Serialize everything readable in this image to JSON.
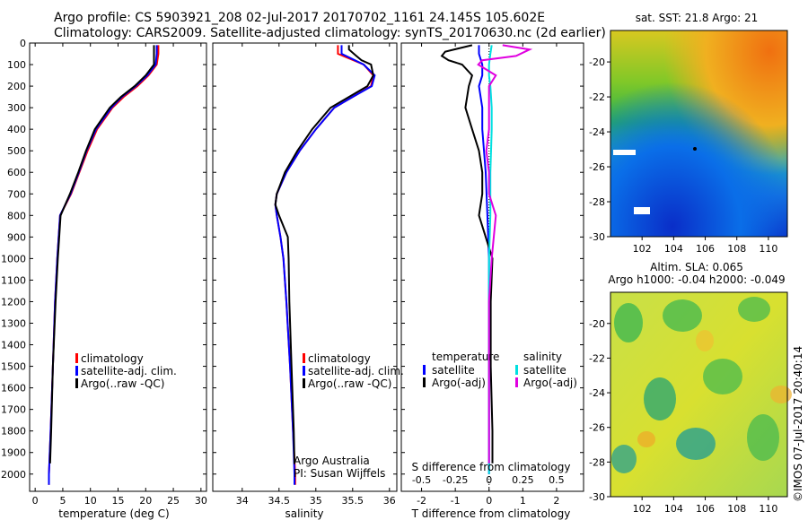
{
  "header": {
    "line1": "Argo profile: CS 5903921_208 02-Jul-2017 20170702_1161 24.145S 105.602E",
    "line2": "Climatology: CARS2009. Satellite-adjusted climatology: synTS_20170630.nc (2d earlier)"
  },
  "footer_vertical": "©IMOS 07-Jul-2017 20:40:14",
  "colors": {
    "climatology": "#ff0000",
    "satellite": "#0000ff",
    "argo": "#000000",
    "salinity_satellite": "#00e0e0",
    "salinity_argo": "#e000e0"
  },
  "chart_data": [
    {
      "type": "line",
      "panel": "temperature",
      "xlabel": "temperature (deg C)",
      "ylabel": "",
      "xlim": [
        -1,
        31
      ],
      "ylim": [
        2080,
        0
      ],
      "xticks": [
        "0",
        "5",
        "10",
        "15",
        "20",
        "25",
        "30"
      ],
      "yticks": [
        "0",
        "100",
        "200",
        "300",
        "400",
        "500",
        "600",
        "700",
        "800",
        "900",
        "1000",
        "1100",
        "1200",
        "1300",
        "1400",
        "1500",
        "1600",
        "1700",
        "1800",
        "1900",
        "2000"
      ],
      "legend": [
        "climatology",
        "satellite-adj. clim.",
        "Argo(..raw -QC)"
      ],
      "legend_position": "bottom-center",
      "series": [
        {
          "name": "climatology",
          "depth": [
            10,
            50,
            100,
            150,
            200,
            250,
            300,
            400,
            500,
            600,
            700,
            800,
            1000,
            1200,
            1500,
            1800,
            2000,
            2050
          ],
          "values": [
            22.3,
            22.3,
            22.0,
            20.5,
            18.5,
            16.0,
            14.0,
            11.2,
            9.5,
            8.0,
            6.5,
            4.5,
            4.0,
            3.6,
            3.2,
            2.8,
            2.5,
            2.5
          ]
        },
        {
          "name": "satellite-adj. clim.",
          "depth": [
            10,
            50,
            100,
            150,
            200,
            250,
            300,
            400,
            500,
            600,
            700,
            800,
            1000,
            1200,
            1500,
            1800,
            2000,
            2050
          ],
          "values": [
            22.0,
            22.0,
            21.8,
            20.3,
            18.2,
            15.7,
            13.8,
            11.0,
            9.3,
            7.9,
            6.4,
            4.5,
            4.0,
            3.6,
            3.2,
            2.8,
            2.5,
            2.5
          ]
        },
        {
          "name": "Argo(..raw -QC)",
          "depth": [
            10,
            50,
            100,
            150,
            200,
            250,
            300,
            400,
            500,
            600,
            700,
            800,
            1000,
            1200,
            1500,
            1800,
            1950
          ],
          "values": [
            21.5,
            21.5,
            21.5,
            20.0,
            18.0,
            15.5,
            13.5,
            10.8,
            9.2,
            7.8,
            6.3,
            4.6,
            4.1,
            3.7,
            3.2,
            2.9,
            2.7
          ]
        }
      ]
    },
    {
      "type": "line",
      "panel": "salinity",
      "xlabel": "salinity",
      "ylabel": "",
      "xlim": [
        33.6,
        36.1
      ],
      "ylim": [
        2080,
        0
      ],
      "xticks": [
        "34",
        "34.5",
        "35",
        "35.5",
        "36"
      ],
      "legend": [
        "climatology",
        "satellite-adj. clim.",
        "Argo(..raw -QC)"
      ],
      "legend_position": "bottom-center",
      "annotation": [
        "Argo Australia",
        "PI: Susan Wijffels"
      ],
      "series": [
        {
          "name": "climatology",
          "depth": [
            10,
            50,
            100,
            150,
            200,
            250,
            300,
            400,
            500,
            600,
            700,
            750,
            800,
            900,
            1000,
            1200,
            1500,
            1800,
            2000,
            2050
          ],
          "values": [
            35.3,
            35.3,
            35.65,
            35.78,
            35.75,
            35.5,
            35.25,
            35.0,
            34.78,
            34.6,
            34.47,
            34.45,
            34.47,
            34.52,
            34.56,
            34.6,
            34.65,
            34.69,
            34.72,
            34.72
          ]
        },
        {
          "name": "satellite-adj. clim.",
          "depth": [
            10,
            50,
            100,
            150,
            200,
            250,
            300,
            400,
            500,
            600,
            700,
            750,
            800,
            900,
            1000,
            1200,
            1500,
            1800,
            2000,
            2050
          ],
          "values": [
            35.35,
            35.35,
            35.65,
            35.8,
            35.76,
            35.5,
            35.25,
            35.0,
            34.78,
            34.6,
            34.47,
            34.45,
            34.47,
            34.52,
            34.56,
            34.6,
            34.65,
            34.69,
            34.71,
            34.71
          ]
        },
        {
          "name": "Argo(..raw -QC)",
          "depth": [
            10,
            30,
            60,
            80,
            100,
            150,
            200,
            250,
            300,
            400,
            500,
            600,
            700,
            750,
            800,
            900,
            1000,
            1200,
            1500,
            1800,
            1950
          ],
          "values": [
            35.45,
            35.45,
            35.55,
            35.62,
            35.75,
            35.78,
            35.7,
            35.45,
            35.2,
            34.95,
            34.75,
            34.58,
            34.47,
            34.45,
            34.5,
            34.62,
            34.63,
            34.64,
            34.67,
            34.7,
            34.71
          ]
        }
      ]
    },
    {
      "type": "line",
      "panel": "difference",
      "xlabel": "T difference from climatology",
      "xlabel2": "S difference from climatology",
      "xlim": [
        -2.6,
        2.8
      ],
      "xlim2": [
        -0.65,
        0.7
      ],
      "ylim": [
        2080,
        0
      ],
      "xticks": [
        "-2",
        "-1",
        "0",
        "1",
        "2"
      ],
      "xticks2": [
        "-0.5",
        "-0.25",
        "0",
        "0.25",
        "0.5"
      ],
      "legend_headers": [
        "temperature",
        "salinity"
      ],
      "legend": [
        "satellite",
        "Argo(-adj)",
        "satellite",
        "Argo(-adj)"
      ],
      "legend_position": "bottom-center",
      "series": [
        {
          "name": "satellite",
          "group": "temperature",
          "depth": [
            10,
            50,
            100,
            150,
            200,
            300,
            400,
            600,
            800,
            1000,
            1500,
            2000
          ],
          "values": [
            -0.3,
            -0.3,
            -0.2,
            -0.2,
            -0.3,
            -0.2,
            -0.2,
            -0.1,
            -0.05,
            0,
            0,
            0
          ]
        },
        {
          "name": "Argo(-adj)",
          "group": "temperature",
          "depth": [
            10,
            40,
            60,
            80,
            100,
            150,
            200,
            300,
            400,
            500,
            600,
            700,
            800,
            1000,
            1200,
            1500,
            1800,
            1950
          ],
          "values": [
            -0.5,
            -1.3,
            -1.4,
            -1.2,
            -0.8,
            -0.5,
            -0.6,
            -0.7,
            -0.5,
            -0.3,
            -0.2,
            -0.2,
            -0.3,
            0.1,
            0.05,
            0.05,
            0.1,
            0.1
          ]
        },
        {
          "name": "satellite",
          "group": "salinity",
          "depth": [
            10,
            50,
            100,
            150,
            200,
            300,
            400,
            600,
            800,
            1000,
            1500,
            2000
          ],
          "values": [
            0.02,
            0.01,
            0.0,
            0.0,
            0.01,
            0.02,
            0.02,
            0.01,
            0.01,
            0.0,
            0.0,
            0.0
          ]
        },
        {
          "name": "Argo(-adj)",
          "group": "salinity",
          "depth": [
            10,
            30,
            60,
            80,
            100,
            150,
            200,
            300,
            400,
            500,
            600,
            700,
            800,
            1000,
            1200,
            1500,
            1800,
            1950
          ],
          "values": [
            0.1,
            0.3,
            0.2,
            -0.05,
            -0.08,
            0.05,
            0.0,
            0.0,
            0.0,
            -0.02,
            0.0,
            0.0,
            0.05,
            0.02,
            0.0,
            0.0,
            0.0,
            0.0
          ]
        }
      ]
    },
    {
      "type": "heatmap",
      "panel": "sst_map",
      "title": "sat. SST: 21.8  Argo: 21",
      "xticks": [
        "102",
        "104",
        "106",
        "108",
        "110"
      ],
      "yticks": [
        "-20",
        "-22",
        "-24",
        "-26",
        "-28",
        "-30"
      ],
      "xlim": [
        100,
        111.2
      ],
      "ylim": [
        -30,
        -18.2
      ]
    },
    {
      "type": "heatmap",
      "panel": "sla_map",
      "title": "Altim. SLA: 0.065",
      "subtitle": "Argo h1000: -0.04  h2000: -0.049",
      "xticks": [
        "102",
        "104",
        "106",
        "108",
        "110"
      ],
      "yticks": [
        "-20",
        "-22",
        "-24",
        "-26",
        "-28",
        "-30"
      ],
      "xlim": [
        100,
        111.2
      ],
      "ylim": [
        -30,
        -18.2
      ]
    }
  ]
}
